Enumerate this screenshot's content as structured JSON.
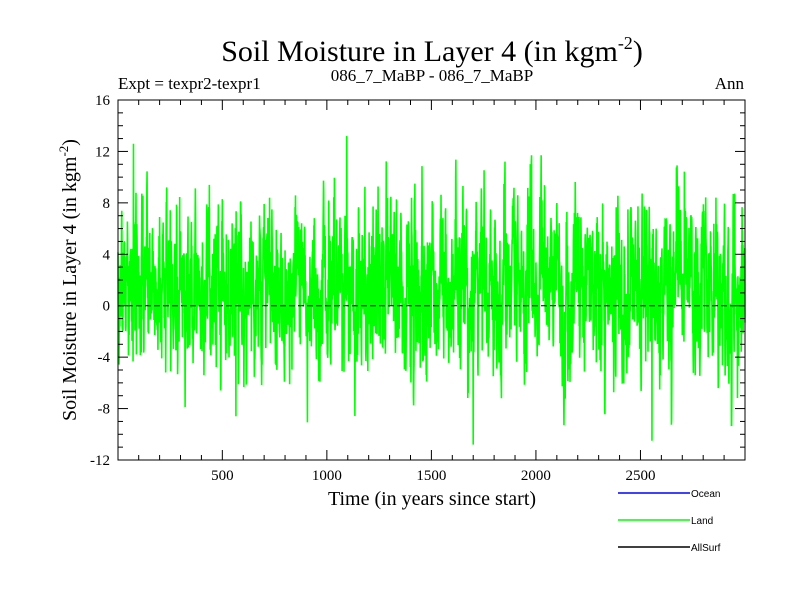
{
  "chart_data": {
    "type": "line",
    "title": "Soil Moisture in Layer 4 (in kgm",
    "title_sup": "-2",
    "title_close": ")",
    "subtitle_left": "Expt = texpr2-texpr1",
    "subtitle_center": "086_7_MaBP - 086_7_MaBP",
    "subtitle_right": "Ann",
    "xlabel": "Time (in years since start)",
    "ylabel": "Soil Moisture in Layer 4 (in kgm",
    "ylabel_sup": "-2",
    "ylabel_close": ")",
    "xlim": [
      1,
      3000
    ],
    "ylim": [
      -12,
      16
    ],
    "x_ticks": [
      500,
      1000,
      1500,
      2000,
      2500
    ],
    "x_tick_labels": [
      "500",
      "1000",
      "1500",
      "2000",
      "2500"
    ],
    "y_ticks": [
      -12,
      -8,
      -4,
      0,
      4,
      8,
      12,
      16
    ],
    "y_tick_labels": [
      "-12",
      "-8",
      "-4",
      "0",
      "4",
      "8",
      "12",
      "16"
    ],
    "zero_line": true,
    "legend_position": "bottom-right, below plot",
    "series": [
      {
        "name": "Ocean",
        "color": "#0000ff",
        "values": []
      },
      {
        "name": "Land",
        "color": "#00ff00",
        "x_start": 1,
        "x_step": 1,
        "length": 3000,
        "mean": 1.6,
        "std": 3.3,
        "min": -10.8,
        "max": 13.2,
        "extremes": [
          {
            "x": 75,
            "y": 12.6
          },
          {
            "x": 565,
            "y": -8.6
          },
          {
            "x": 1095,
            "y": 13.2
          },
          {
            "x": 1700,
            "y": -10.8
          },
          {
            "x": 2555,
            "y": -10.5
          }
        ]
      },
      {
        "name": "AllSurf",
        "color": "#000000",
        "values": []
      }
    ]
  }
}
